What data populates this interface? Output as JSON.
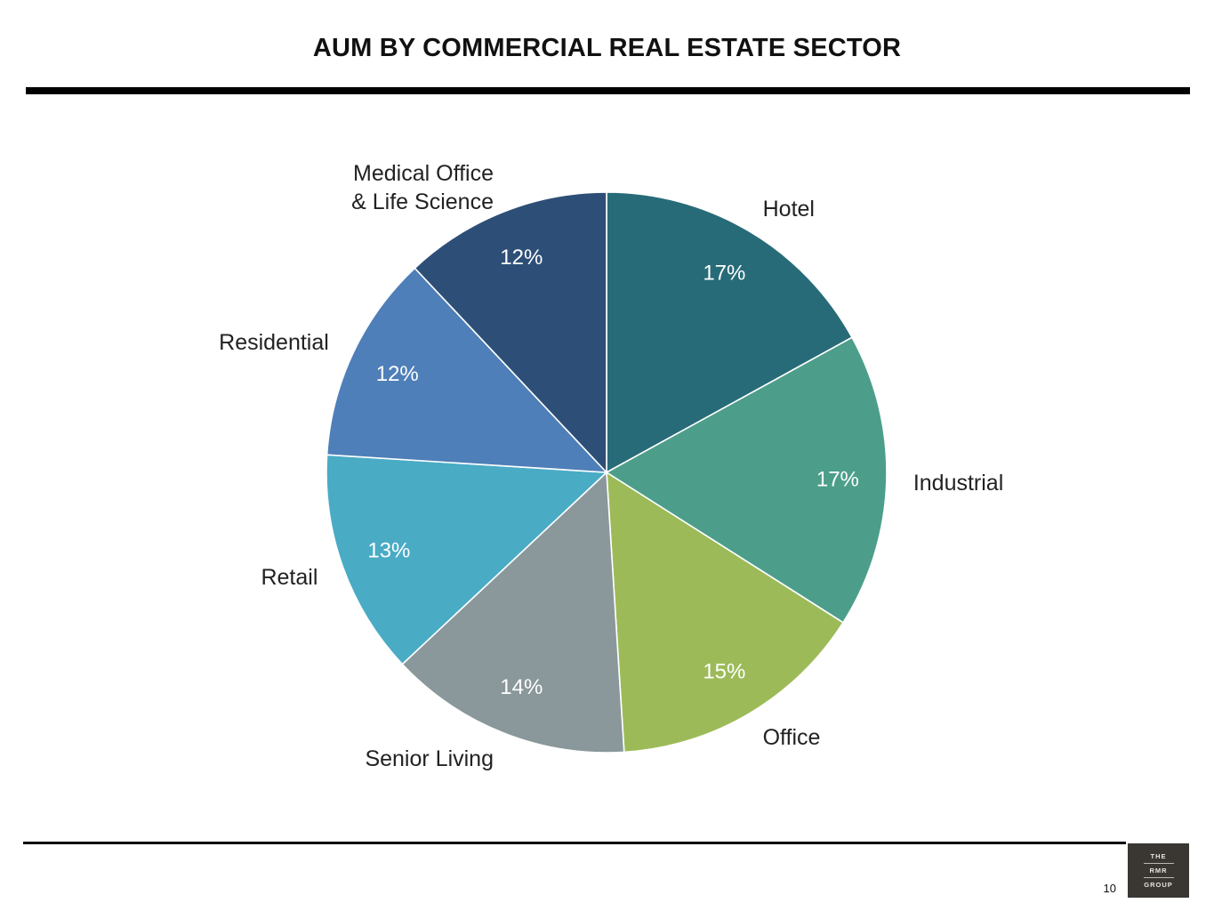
{
  "header": {
    "title": "AUM BY COMMERCIAL REAL ESTATE SECTOR"
  },
  "footer": {
    "page_number": "10",
    "logo_lines": [
      "THE",
      "RMR",
      "GROUP"
    ]
  },
  "chart_data": {
    "type": "pie",
    "title": "AUM BY COMMERCIAL REAL ESTATE SECTOR",
    "slices": [
      {
        "label": [
          "Hotel"
        ],
        "value": 17,
        "display": "17%",
        "color": "#276b78"
      },
      {
        "label": [
          "Industrial"
        ],
        "value": 17,
        "display": "17%",
        "color": "#4c9e8b"
      },
      {
        "label": [
          "Office"
        ],
        "value": 15,
        "display": "15%",
        "color": "#9cbb58"
      },
      {
        "label": [
          "Senior Living"
        ],
        "value": 14,
        "display": "14%",
        "color": "#8a979b"
      },
      {
        "label": [
          "Retail"
        ],
        "value": 13,
        "display": "13%",
        "color": "#4aabc5"
      },
      {
        "label": [
          "Residential"
        ],
        "value": 12,
        "display": "12%",
        "color": "#4e7fb8"
      },
      {
        "label": [
          "Medical Office",
          "& Life Science"
        ],
        "value": 12,
        "display": "12%",
        "color": "#2d4f77"
      }
    ]
  }
}
